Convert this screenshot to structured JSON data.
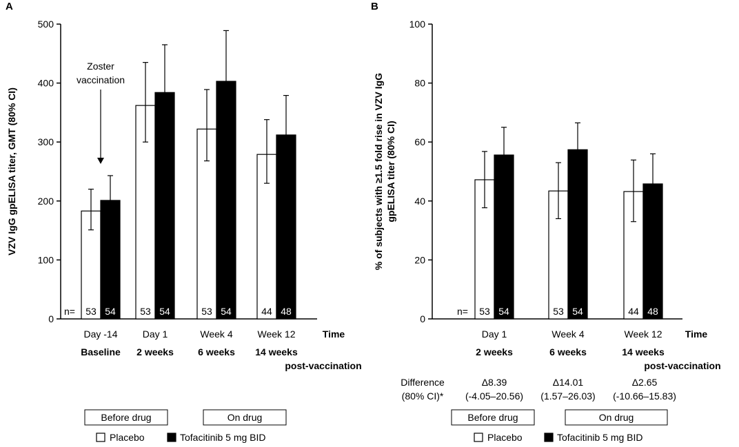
{
  "chart_data": [
    {
      "panel": "A",
      "type": "bar",
      "ylabel": "VZV IgG gpELISA titer, GMT (80% CI)",
      "ylim": [
        0,
        500
      ],
      "yticks": [
        "0",
        "100",
        "200",
        "300",
        "400",
        "500"
      ],
      "categories": [
        "Day -14",
        "Day 1",
        "Week 4",
        "Week 12"
      ],
      "subcategories": [
        "Baseline",
        "2 weeks",
        "6 weeks",
        "14 weeks"
      ],
      "time_label": [
        "Time",
        "post-vaccination"
      ],
      "n_prefix": "n=",
      "annotation": [
        "Zoster",
        "vaccination"
      ],
      "period_boxes": [
        "Before drug",
        "On drug"
      ],
      "series": [
        {
          "name": "Placebo",
          "fill": "#ffffff",
          "values": [
            183,
            362,
            322,
            279
          ],
          "ci_low": [
            151,
            300,
            268,
            230
          ],
          "ci_high": [
            220,
            435,
            389,
            338
          ],
          "n": [
            "53",
            "53",
            "53",
            "44"
          ]
        },
        {
          "name": "Tofacitinib 5 mg BID",
          "fill": "#000000",
          "values": [
            201,
            384,
            403,
            312
          ],
          "ci_low": [
            175,
            317,
            333,
            258
          ],
          "ci_high": [
            243,
            465,
            489,
            379
          ],
          "n": [
            "54",
            "54",
            "54",
            "48"
          ]
        }
      ]
    },
    {
      "panel": "B",
      "type": "bar",
      "ylabel": [
        "% of subjects with ≥1.5 fold rise in VZV IgG",
        "gpELISA titer (80% CI)"
      ],
      "ylim": [
        0,
        100
      ],
      "yticks": [
        "0",
        "20",
        "40",
        "60",
        "80",
        "100"
      ],
      "categories": [
        "Day 1",
        "Week 4",
        "Week 12"
      ],
      "subcategories": [
        "2 weeks",
        "6 weeks",
        "14 weeks"
      ],
      "time_label": [
        "Time",
        "post-vaccination"
      ],
      "n_prefix": "n=",
      "difference_label": [
        "Difference",
        "(80% CI)*"
      ],
      "differences": [
        "Δ8.39",
        "Δ14.01",
        "Δ2.65"
      ],
      "difference_ci": [
        "(-4.05–20.56)",
        "(1.57–26.03)",
        "(-10.66–15.83)"
      ],
      "period_boxes": [
        "Before drug",
        "On drug"
      ],
      "series": [
        {
          "name": "Placebo",
          "fill": "#ffffff",
          "values": [
            47.2,
            43.4,
            43.2
          ],
          "ci_low": [
            37.7,
            34.0,
            33.0
          ],
          "ci_high": [
            56.8,
            53.0,
            53.9
          ],
          "n": [
            "53",
            "53",
            "44"
          ]
        },
        {
          "name": "Tofacitinib 5 mg BID",
          "fill": "#000000",
          "values": [
            55.6,
            57.4,
            45.8
          ],
          "ci_low": [
            46.0,
            48.0,
            36.0
          ],
          "ci_high": [
            65.0,
            66.5,
            56.0
          ],
          "n": [
            "54",
            "54",
            "48"
          ]
        }
      ]
    }
  ]
}
